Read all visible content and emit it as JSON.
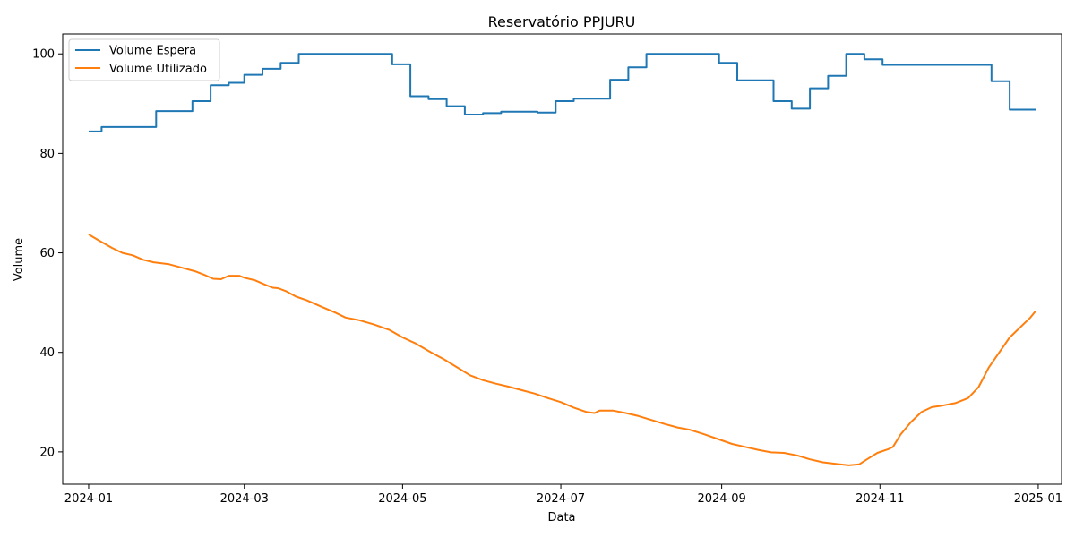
{
  "chart_data": {
    "type": "line",
    "title": "Reservatório PPJURU",
    "xlabel": "Data",
    "ylabel": "Volume",
    "xlim": [
      "2023-12-22",
      "2025-01-10"
    ],
    "ylim": [
      13.5,
      104
    ],
    "x_ticks": [
      "2024-01",
      "2024-03",
      "2024-05",
      "2024-07",
      "2024-09",
      "2024-11",
      "2025-01"
    ],
    "y_ticks": [
      20,
      40,
      60,
      80,
      100
    ],
    "grid": false,
    "legend": "upper left",
    "series": [
      {
        "name": "Volume Espera",
        "color": "#1f77b4",
        "step": true,
        "points": [
          [
            "2024-01-01",
            84.4
          ],
          [
            "2024-01-06",
            84.4
          ],
          [
            "2024-01-06",
            85.3
          ],
          [
            "2024-01-27",
            85.3
          ],
          [
            "2024-01-27",
            88.5
          ],
          [
            "2024-02-10",
            88.5
          ],
          [
            "2024-02-10",
            90.5
          ],
          [
            "2024-02-17",
            90.5
          ],
          [
            "2024-02-17",
            93.7
          ],
          [
            "2024-02-24",
            93.7
          ],
          [
            "2024-02-24",
            94.2
          ],
          [
            "2024-03-01",
            94.2
          ],
          [
            "2024-03-01",
            95.8
          ],
          [
            "2024-03-08",
            95.8
          ],
          [
            "2024-03-08",
            97.0
          ],
          [
            "2024-03-15",
            97.0
          ],
          [
            "2024-03-15",
            98.2
          ],
          [
            "2024-03-22",
            98.2
          ],
          [
            "2024-03-22",
            100.0
          ],
          [
            "2024-04-27",
            100.0
          ],
          [
            "2024-04-27",
            97.9
          ],
          [
            "2024-05-04",
            97.9
          ],
          [
            "2024-05-04",
            91.5
          ],
          [
            "2024-05-11",
            91.5
          ],
          [
            "2024-05-11",
            90.9
          ],
          [
            "2024-05-18",
            90.9
          ],
          [
            "2024-05-18",
            89.5
          ],
          [
            "2024-05-25",
            89.5
          ],
          [
            "2024-05-25",
            87.8
          ],
          [
            "2024-06-01",
            87.8
          ],
          [
            "2024-06-01",
            88.1
          ],
          [
            "2024-06-08",
            88.1
          ],
          [
            "2024-06-08",
            88.4
          ],
          [
            "2024-06-22",
            88.4
          ],
          [
            "2024-06-22",
            88.2
          ],
          [
            "2024-06-29",
            88.2
          ],
          [
            "2024-06-29",
            90.5
          ],
          [
            "2024-07-06",
            90.5
          ],
          [
            "2024-07-06",
            91.0
          ],
          [
            "2024-07-20",
            91.0
          ],
          [
            "2024-07-20",
            94.8
          ],
          [
            "2024-07-27",
            94.8
          ],
          [
            "2024-07-27",
            97.3
          ],
          [
            "2024-08-03",
            97.3
          ],
          [
            "2024-08-03",
            100.0
          ],
          [
            "2024-08-31",
            100.0
          ],
          [
            "2024-08-31",
            98.2
          ],
          [
            "2024-09-07",
            98.2
          ],
          [
            "2024-09-07",
            94.7
          ],
          [
            "2024-09-21",
            94.7
          ],
          [
            "2024-09-21",
            90.5
          ],
          [
            "2024-09-28",
            90.5
          ],
          [
            "2024-09-28",
            89.0
          ],
          [
            "2024-10-05",
            89.0
          ],
          [
            "2024-10-05",
            93.1
          ],
          [
            "2024-10-12",
            93.1
          ],
          [
            "2024-10-12",
            95.6
          ],
          [
            "2024-10-19",
            95.6
          ],
          [
            "2024-10-19",
            100.0
          ],
          [
            "2024-10-26",
            100.0
          ],
          [
            "2024-10-26",
            98.9
          ],
          [
            "2024-11-02",
            98.9
          ],
          [
            "2024-11-02",
            97.8
          ],
          [
            "2024-12-14",
            97.8
          ],
          [
            "2024-12-14",
            94.5
          ],
          [
            "2024-12-21",
            94.5
          ],
          [
            "2024-12-21",
            88.8
          ],
          [
            "2024-12-31",
            88.8
          ]
        ]
      },
      {
        "name": "Volume Utilizado",
        "color": "#ff7f0e",
        "step": false,
        "points": [
          [
            "2024-01-01",
            63.7
          ],
          [
            "2024-01-05",
            62.5
          ],
          [
            "2024-01-10",
            61.0
          ],
          [
            "2024-01-14",
            60.0
          ],
          [
            "2024-01-18",
            59.5
          ],
          [
            "2024-01-22",
            58.6
          ],
          [
            "2024-01-26",
            58.1
          ],
          [
            "2024-02-01",
            57.7
          ],
          [
            "2024-02-06",
            57.0
          ],
          [
            "2024-02-11",
            56.3
          ],
          [
            "2024-02-15",
            55.5
          ],
          [
            "2024-02-18",
            54.8
          ],
          [
            "2024-02-21",
            54.7
          ],
          [
            "2024-02-24",
            55.4
          ],
          [
            "2024-02-28",
            55.4
          ],
          [
            "2024-03-01",
            55.0
          ],
          [
            "2024-03-05",
            54.5
          ],
          [
            "2024-03-09",
            53.6
          ],
          [
            "2024-03-12",
            53.0
          ],
          [
            "2024-03-14",
            52.9
          ],
          [
            "2024-03-17",
            52.3
          ],
          [
            "2024-03-21",
            51.2
          ],
          [
            "2024-03-25",
            50.5
          ],
          [
            "2024-03-31",
            49.1
          ],
          [
            "2024-04-05",
            48.0
          ],
          [
            "2024-04-09",
            47.0
          ],
          [
            "2024-04-14",
            46.5
          ],
          [
            "2024-04-20",
            45.6
          ],
          [
            "2024-04-26",
            44.5
          ],
          [
            "2024-05-01",
            43.0
          ],
          [
            "2024-05-06",
            41.8
          ],
          [
            "2024-05-12",
            40.0
          ],
          [
            "2024-05-17",
            38.6
          ],
          [
            "2024-05-22",
            37.0
          ],
          [
            "2024-05-27",
            35.4
          ],
          [
            "2024-06-01",
            34.4
          ],
          [
            "2024-06-06",
            33.7
          ],
          [
            "2024-06-11",
            33.1
          ],
          [
            "2024-06-16",
            32.4
          ],
          [
            "2024-06-21",
            31.7
          ],
          [
            "2024-06-26",
            30.8
          ],
          [
            "2024-07-01",
            30.0
          ],
          [
            "2024-07-06",
            28.9
          ],
          [
            "2024-07-11",
            28.0
          ],
          [
            "2024-07-14",
            27.8
          ],
          [
            "2024-07-16",
            28.3
          ],
          [
            "2024-07-21",
            28.3
          ],
          [
            "2024-07-26",
            27.8
          ],
          [
            "2024-07-31",
            27.2
          ],
          [
            "2024-08-05",
            26.4
          ],
          [
            "2024-08-10",
            25.6
          ],
          [
            "2024-08-15",
            24.9
          ],
          [
            "2024-08-20",
            24.4
          ],
          [
            "2024-08-25",
            23.6
          ],
          [
            "2024-08-31",
            22.5
          ],
          [
            "2024-09-05",
            21.6
          ],
          [
            "2024-09-10",
            21.0
          ],
          [
            "2024-09-15",
            20.4
          ],
          [
            "2024-09-20",
            19.9
          ],
          [
            "2024-09-25",
            19.8
          ],
          [
            "2024-09-30",
            19.3
          ],
          [
            "2024-10-05",
            18.5
          ],
          [
            "2024-10-10",
            17.9
          ],
          [
            "2024-10-15",
            17.6
          ],
          [
            "2024-10-20",
            17.3
          ],
          [
            "2024-10-24",
            17.5
          ],
          [
            "2024-10-27",
            18.5
          ],
          [
            "2024-10-31",
            19.8
          ],
          [
            "2024-11-04",
            20.5
          ],
          [
            "2024-11-06",
            21.0
          ],
          [
            "2024-11-09",
            23.5
          ],
          [
            "2024-11-13",
            26.0
          ],
          [
            "2024-11-17",
            28.0
          ],
          [
            "2024-11-21",
            29.0
          ],
          [
            "2024-11-25",
            29.3
          ],
          [
            "2024-11-30",
            29.8
          ],
          [
            "2024-12-05",
            30.8
          ],
          [
            "2024-12-09",
            33.0
          ],
          [
            "2024-12-13",
            37.0
          ],
          [
            "2024-12-17",
            40.0
          ],
          [
            "2024-12-21",
            43.0
          ],
          [
            "2024-12-25",
            45.0
          ],
          [
            "2024-12-29",
            47.0
          ],
          [
            "2024-12-31",
            48.3
          ]
        ]
      }
    ]
  }
}
